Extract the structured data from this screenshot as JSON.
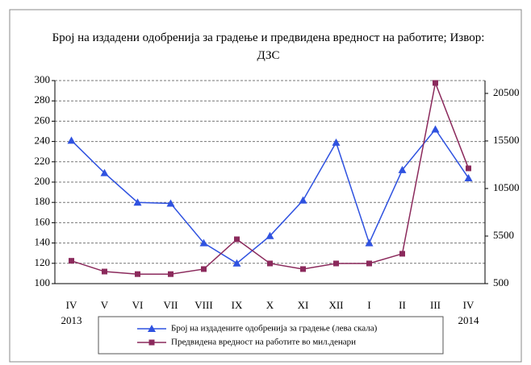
{
  "chart_data": {
    "type": "line",
    "title": "Број на издадени одобренија за градење и предвидена вредност на работите; Извор: ДЗС",
    "categories": [
      "IV",
      "V",
      "VI",
      "VII",
      "VIII",
      "IX",
      "X",
      "XI",
      "XII",
      "I",
      "II",
      "III",
      "IV"
    ],
    "year_labels": [
      "2013",
      "2014"
    ],
    "series": [
      {
        "name": "Број на издадените одобренија за градење (лева скала)",
        "color": "#2f52e0",
        "values": [
          241,
          209,
          180,
          179,
          140,
          120,
          147,
          182,
          239,
          140,
          212,
          252,
          204
        ]
      },
      {
        "name": "Предвидена вредност на работите во мил.денари",
        "color": "#8b2a5c",
        "axis": "y2",
        "values": [
          2900,
          1770,
          1500,
          1500,
          2030,
          5160,
          2620,
          2030,
          2620,
          2620,
          3640,
          21600,
          12620
        ]
      }
    ],
    "ylim": [
      100,
      300
    ],
    "yticks": [
      100,
      120,
      140,
      160,
      180,
      200,
      220,
      240,
      260,
      280,
      300
    ],
    "y2lim": [
      500,
      21850
    ],
    "y2ticks": [
      500,
      5500,
      10500,
      15500,
      20500
    ],
    "grid": true
  }
}
